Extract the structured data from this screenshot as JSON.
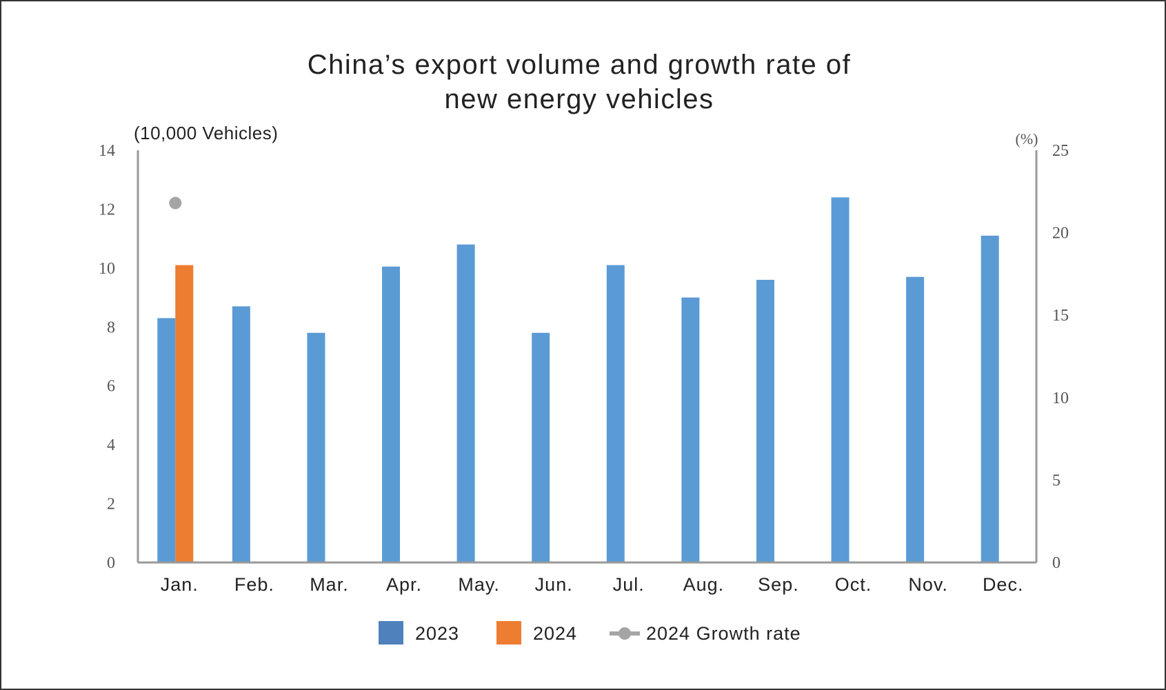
{
  "chart_data": {
    "type": "bar",
    "title_lines": [
      "China’s export volume and growth rate of",
      "new energy vehicles"
    ],
    "ylabel_left": "(10,000 Vehicles)",
    "ylabel_right": "(%)",
    "ylim_left": [
      0,
      14
    ],
    "ylim_right": [
      0,
      25
    ],
    "yticks_left": [
      "0",
      "2",
      "4",
      "6",
      "8",
      "10",
      "12",
      "14"
    ],
    "yticks_right": [
      "0",
      "5",
      "10",
      "15",
      "20",
      "25"
    ],
    "categories": [
      "Jan.",
      "Feb.",
      "Mar.",
      "Apr.",
      "May.",
      "Jun.",
      "Jul.",
      "Aug.",
      "Sep.",
      "Oct.",
      "Nov.",
      "Dec."
    ],
    "series": [
      {
        "name": "2023",
        "type": "bar",
        "axis": "left",
        "color": "#5b9bd5",
        "values": [
          8.3,
          8.7,
          7.8,
          10.05,
          10.8,
          7.8,
          10.1,
          9.0,
          9.6,
          12.4,
          9.7,
          11.1
        ]
      },
      {
        "name": "2024",
        "type": "bar",
        "axis": "left",
        "color": "#ed7d31",
        "values": [
          10.1,
          null,
          null,
          null,
          null,
          null,
          null,
          null,
          null,
          null,
          null,
          null
        ]
      },
      {
        "name": "2024 Growth rate",
        "type": "line",
        "axis": "right",
        "color": "#a5a5a5",
        "values": [
          21.8,
          null,
          null,
          null,
          null,
          null,
          null,
          null,
          null,
          null,
          null,
          null
        ]
      }
    ],
    "legend_position": "bottom",
    "grid": false
  }
}
